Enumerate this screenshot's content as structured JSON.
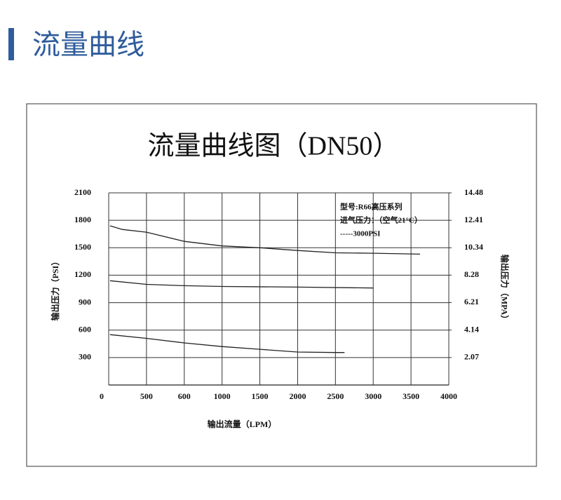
{
  "header": {
    "title": "流量曲线"
  },
  "chart_data": {
    "type": "line",
    "title": "流量曲线图（DN50）",
    "xlabel": "输出流量（LPM）",
    "ylabel": "输出压力（PSI）",
    "y2label": "输出压力（MPA）",
    "annotations": [
      "型号:R66高压系列",
      "进气压力：（空气21°C）",
      "-----3000PSI"
    ],
    "xlim": [
      0,
      4000
    ],
    "xticks": [
      0,
      500,
      600,
      1000,
      1500,
      2000,
      2500,
      3000,
      3500,
      4000
    ],
    "ylim": [
      0,
      2100
    ],
    "yticks": [
      300,
      600,
      900,
      1200,
      1500,
      1800,
      2100
    ],
    "y2lim": [
      0,
      14.48
    ],
    "y2ticks": [
      2.07,
      4.14,
      6.21,
      8.28,
      10.34,
      12.41,
      14.48
    ],
    "grid": true,
    "series": [
      {
        "color": "#222222",
        "x": [
          18,
          180,
          500,
          600,
          1000,
          1500,
          2000,
          2500,
          3000,
          3620
        ],
        "values": [
          1740,
          1700,
          1670,
          1570,
          1520,
          1500,
          1470,
          1445,
          1440,
          1430
        ]
      },
      {
        "color": "#222222",
        "x": [
          18,
          500,
          600,
          1000,
          2000,
          3000
        ],
        "values": [
          1140,
          1100,
          1085,
          1077,
          1070,
          1060
        ]
      },
      {
        "color": "#222222",
        "x": [
          18,
          500,
          600,
          1000,
          1500,
          2000,
          2500,
          2620
        ],
        "values": [
          550,
          510,
          460,
          420,
          390,
          360,
          355,
          355
        ]
      }
    ]
  }
}
